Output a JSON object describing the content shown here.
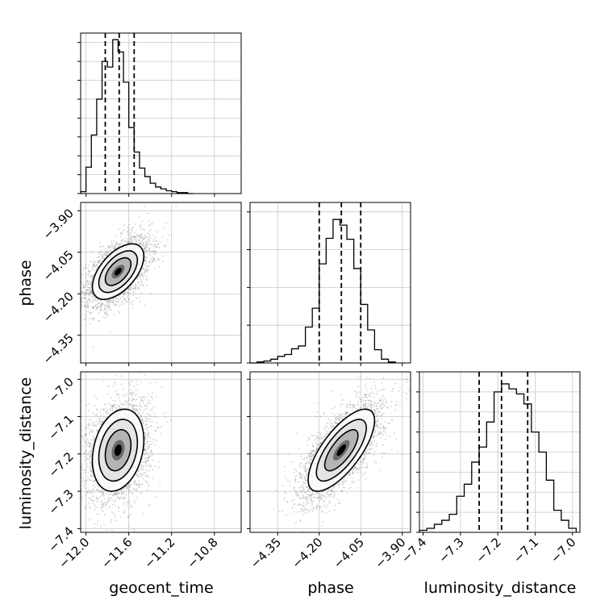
{
  "chart_data": {
    "type": "corner",
    "parameters": [
      "geocent_time",
      "phase",
      "luminosity_distance"
    ],
    "axis_labels": {
      "x": [
        "geocent_time",
        "phase",
        "luminosity_distance"
      ],
      "y": [
        "phase",
        "luminosity_distance"
      ]
    },
    "ranges": {
      "geocent_time": [
        -12.05,
        -10.55
      ],
      "phase": [
        -4.45,
        -3.87
      ],
      "luminosity_distance": [
        -7.41,
        -6.98
      ]
    },
    "ticks": {
      "geocent_time": {
        "values": [
          -12.0,
          -11.6,
          -11.2,
          -10.8
        ],
        "labels": [
          "−12.0",
          "−11.6",
          "−11.2",
          "−10.8"
        ]
      },
      "phase": {
        "values": [
          -4.35,
          -4.2,
          -4.05,
          -3.9
        ],
        "labels": [
          "−4.35",
          "−4.20",
          "−4.05",
          "−3.90"
        ]
      },
      "luminosity_distance": {
        "values": [
          -7.4,
          -7.3,
          -7.2,
          -7.1,
          -7.0
        ],
        "labels": [
          "−7.4",
          "−7.3",
          "−7.2",
          "−7.1",
          "−7.0"
        ]
      }
    },
    "quantiles": {
      "geocent_time": [
        -11.82,
        -11.69,
        -11.55
      ],
      "phase": [
        -4.2,
        -4.12,
        -4.05
      ],
      "luminosity_distance": [
        -7.25,
        -7.19,
        -7.12
      ]
    },
    "histograms": [
      {
        "parameter": "geocent_time",
        "edges": [
          -12.05,
          -12.0,
          -11.95,
          -11.9,
          -11.85,
          -11.8,
          -11.75,
          -11.7,
          -11.65,
          -11.6,
          -11.55,
          -11.5,
          -11.45,
          -11.4,
          -11.35,
          -11.3,
          -11.25,
          -11.2,
          -11.15,
          -11.1,
          -11.05,
          -11.0
        ],
        "counts": [
          2,
          28,
          62,
          100,
          140,
          134,
          163,
          150,
          118,
          70,
          44,
          27,
          18,
          11,
          7,
          5,
          3,
          2,
          1,
          1,
          0
        ],
        "ymax": 170,
        "yticks": [
          0,
          20,
          40,
          60,
          80,
          100,
          120,
          140,
          160,
          180
        ]
      },
      {
        "parameter": "phase",
        "edges": [
          -4.45,
          -4.425,
          -4.4,
          -4.375,
          -4.35,
          -4.325,
          -4.3,
          -4.275,
          -4.25,
          -4.225,
          -4.2,
          -4.175,
          -4.15,
          -4.125,
          -4.1,
          -4.075,
          -4.05,
          -4.025,
          -4.0,
          -3.975,
          -3.95,
          -3.925
        ],
        "counts": [
          0,
          1,
          2,
          4,
          7,
          9,
          15,
          18,
          38,
          58,
          105,
          132,
          152,
          146,
          131,
          100,
          62,
          35,
          14,
          4,
          1
        ],
        "ymax": 170,
        "yticks": [
          0,
          40,
          80,
          120,
          160
        ]
      },
      {
        "parameter": "luminosity_distance",
        "edges": [
          -7.41,
          -7.39,
          -7.37,
          -7.35,
          -7.33,
          -7.31,
          -7.29,
          -7.27,
          -7.25,
          -7.23,
          -7.21,
          -7.19,
          -7.17,
          -7.15,
          -7.13,
          -7.11,
          -7.09,
          -7.07,
          -7.05,
          -7.03,
          -7.01,
          -6.99
        ],
        "counts": [
          2,
          4,
          8,
          12,
          18,
          36,
          48,
          70,
          85,
          110,
          140,
          148,
          143,
          138,
          128,
          100,
          80,
          52,
          22,
          12,
          4
        ],
        "ymax": 160,
        "yticks": [
          0,
          20,
          40,
          60,
          80,
          100,
          120,
          140,
          160
        ]
      }
    ],
    "joint_distributions": [
      {
        "x": "geocent_time",
        "y": "phase",
        "center": [
          -11.7,
          -4.12
        ],
        "sigma": [
          0.12,
          0.05
        ],
        "correlation": 0.55,
        "n_points": 3000,
        "contour_levels_sigma": [
          0.5,
          1.0,
          1.5,
          2.0
        ]
      },
      {
        "x": "geocent_time",
        "y": "luminosity_distance",
        "center": [
          -11.7,
          -7.19
        ],
        "sigma": [
          0.12,
          0.055
        ],
        "correlation": 0.25,
        "n_points": 3000,
        "contour_levels_sigma": [
          0.5,
          1.0,
          1.5,
          2.0
        ]
      },
      {
        "x": "phase",
        "y": "luminosity_distance",
        "center": [
          -4.12,
          -7.19
        ],
        "sigma": [
          0.06,
          0.055
        ],
        "correlation": 0.72,
        "n_points": 3000,
        "contour_levels_sigma": [
          0.5,
          1.0,
          1.5,
          2.0
        ]
      }
    ]
  }
}
